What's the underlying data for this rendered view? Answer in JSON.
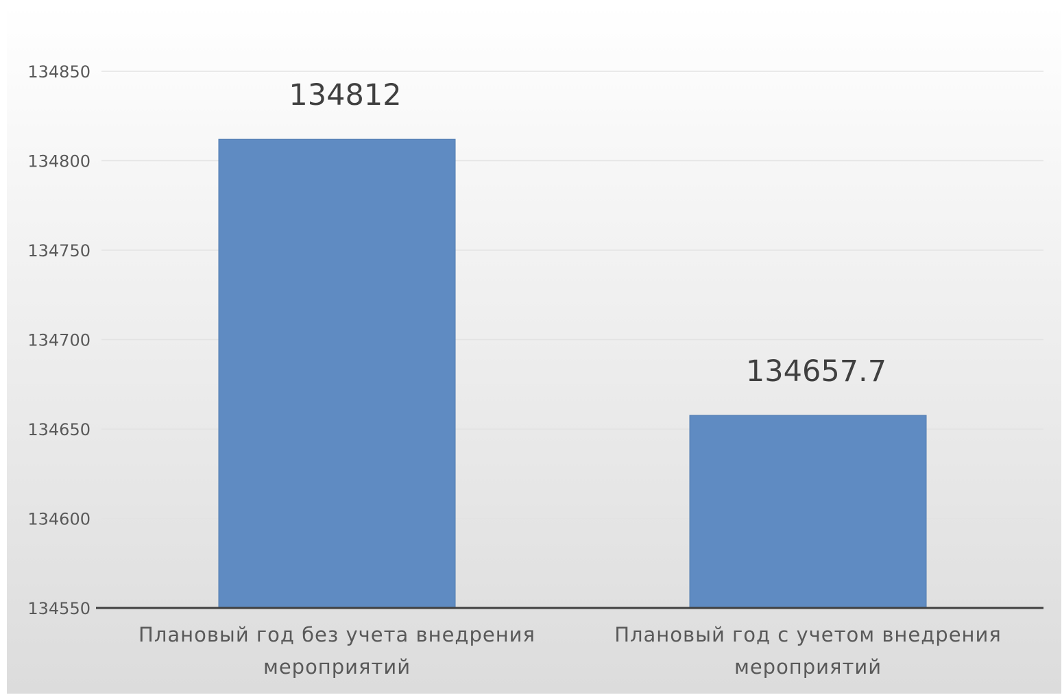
{
  "chart_data": {
    "type": "bar",
    "title": "",
    "xlabel": "",
    "ylabel": "",
    "categories": [
      [
        "Плановый год без учета внедрения",
        "мероприятий"
      ],
      [
        "Плановый год с учетом внедрения",
        "мероприятий"
      ]
    ],
    "values": [
      134812,
      134657.7
    ],
    "data_labels": [
      "134812",
      "134657.7"
    ],
    "ylim": [
      134550,
      134850
    ],
    "yticks": [
      "134550",
      "134600",
      "134650",
      "134700",
      "134750",
      "134800",
      "134850"
    ],
    "grid": true,
    "legend": "none",
    "bar_color": "#5f8bc2",
    "gridline_color": "#e3e3e3",
    "axis_color": "#404040"
  }
}
